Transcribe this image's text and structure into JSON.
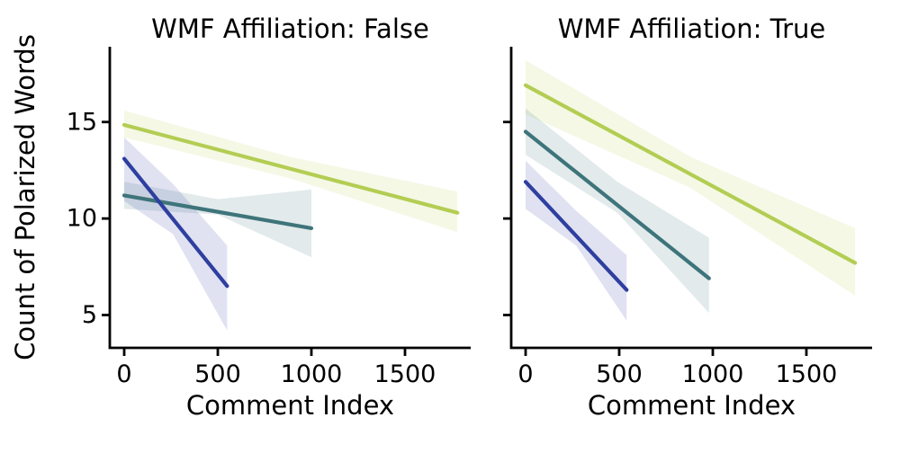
{
  "chart_data": {
    "type": "line",
    "title": "",
    "xlabel": "Comment Index",
    "ylabel": "Count of Polarized Words",
    "xlim": [
      -77,
      1851
    ],
    "ylim": [
      3.3,
      18.9
    ],
    "xticks": [
      0,
      500,
      1000,
      1500
    ],
    "yticks": [
      5,
      10,
      15
    ],
    "grid": false,
    "legend": "none",
    "style": "seaborn-ticks-despined",
    "axis_color": "#000000",
    "band_alpha": 0.15,
    "panels": [
      {
        "title": "WMF Affiliation: False",
        "series": [
          {
            "id": "green",
            "color": "#b3cd53",
            "line": [
              [
                0,
                14.85
              ],
              [
                1780,
                10.3
              ]
            ],
            "band": [
              [
                0,
                15.6,
                14.2
              ],
              [
                880,
                13.2,
                12.1
              ],
              [
                1780,
                11.4,
                9.3
              ]
            ]
          },
          {
            "id": "teal",
            "color": "#3e747b",
            "line": [
              [
                0,
                11.2
              ],
              [
                1000,
                9.5
              ]
            ],
            "band": [
              [
                0,
                11.9,
                10.5
              ],
              [
                500,
                11.0,
                10.2
              ],
              [
                1000,
                11.5,
                8.0
              ]
            ]
          },
          {
            "id": "blue",
            "color": "#2e3fa0",
            "line": [
              [
                0,
                13.1
              ],
              [
                550,
                6.5
              ]
            ],
            "band": [
              [
                0,
                14.2,
                10.9
              ],
              [
                260,
                11.8,
                9.2
              ],
              [
                550,
                8.6,
                4.2
              ]
            ]
          }
        ]
      },
      {
        "title": "WMF Affiliation: True",
        "series": [
          {
            "id": "green",
            "color": "#b3cd53",
            "line": [
              [
                0,
                16.9
              ],
              [
                1760,
                7.7
              ]
            ],
            "band": [
              [
                0,
                18.2,
                15.4
              ],
              [
                880,
                13.2,
                11.6
              ],
              [
                1760,
                9.5,
                6.0
              ]
            ]
          },
          {
            "id": "teal",
            "color": "#3e747b",
            "line": [
              [
                0,
                14.5
              ],
              [
                980,
                6.9
              ]
            ],
            "band": [
              [
                0,
                15.7,
                13.3
              ],
              [
                490,
                11.9,
                10.3
              ],
              [
                980,
                9.0,
                5.1
              ]
            ]
          },
          {
            "id": "blue",
            "color": "#2e3fa0",
            "line": [
              [
                0,
                11.9
              ],
              [
                540,
                6.3
              ]
            ],
            "band": [
              [
                0,
                13.0,
                10.5
              ],
              [
                270,
                10.4,
                8.6
              ],
              [
                540,
                8.1,
                4.7
              ]
            ]
          }
        ]
      }
    ]
  }
}
